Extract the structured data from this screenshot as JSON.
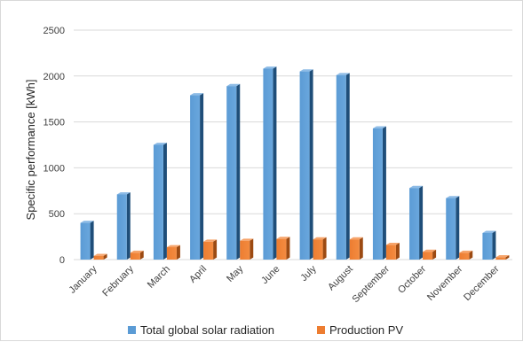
{
  "chart_data": {
    "type": "bar",
    "ylabel": "Specific performance [kWh]",
    "xlabel": "",
    "ylim": [
      0,
      2500
    ],
    "yticks": [
      0,
      500,
      1000,
      1500,
      2000,
      2500
    ],
    "grid": true,
    "legend_position": "bottom",
    "categories": [
      "January",
      "February",
      "March",
      "April",
      "May",
      "June",
      "July",
      "August",
      "September",
      "October",
      "November",
      "December"
    ],
    "series": [
      {
        "name": "Total global solar radiation",
        "color": "#5b9bd5",
        "values": [
          400,
          710,
          1250,
          1790,
          1890,
          2080,
          2050,
          2010,
          1430,
          780,
          670,
          290
        ]
      },
      {
        "name": "Production PV",
        "color": "#ed7d31",
        "values": [
          40,
          75,
          135,
          195,
          205,
          225,
          220,
          220,
          160,
          85,
          75,
          25
        ]
      }
    ]
  }
}
